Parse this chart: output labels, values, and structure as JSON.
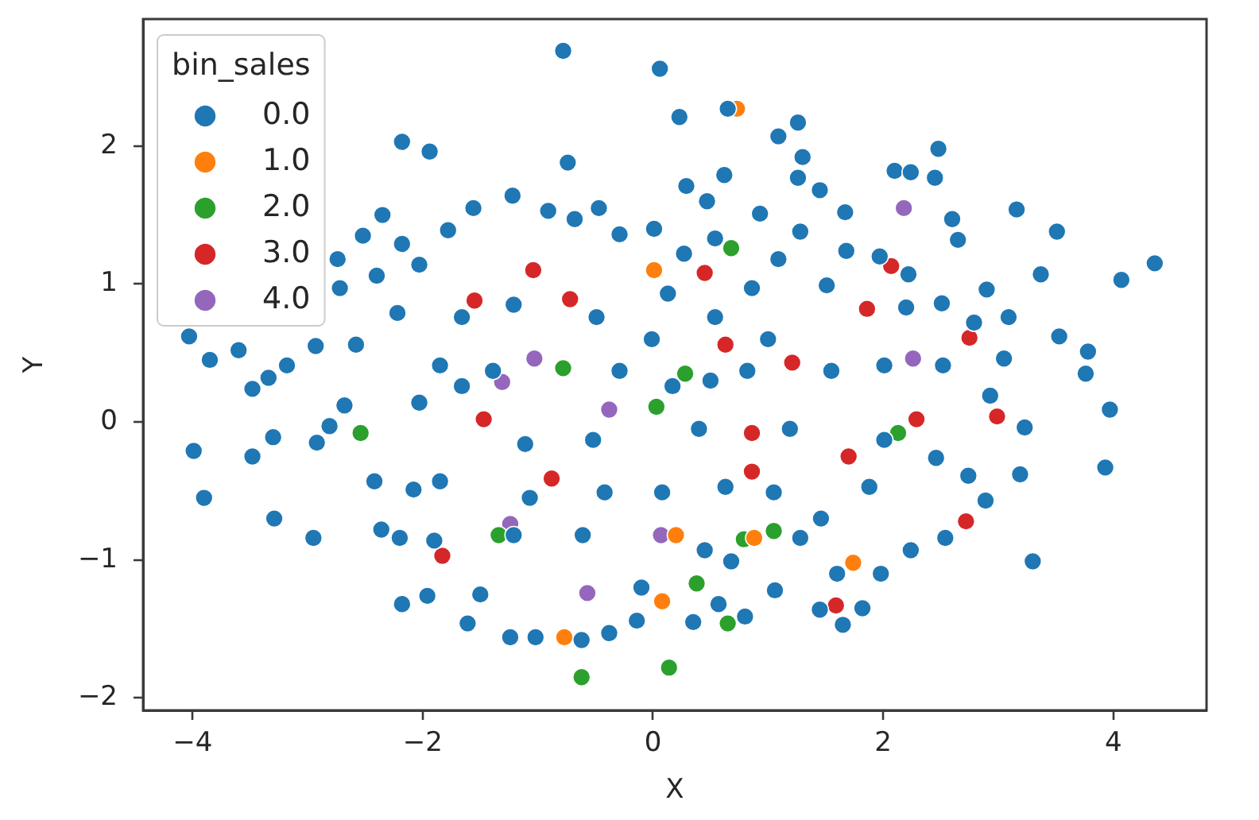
{
  "chart_data": {
    "type": "scatter",
    "xlabel": "X",
    "ylabel": "Y",
    "legend_title": "bin_sales",
    "legend": "top left",
    "marker": "circle",
    "xlim": [
      -4.43,
      4.81
    ],
    "ylim": [
      -2.09,
      2.92
    ],
    "xticks": [
      {
        "value": -4,
        "label": "−4"
      },
      {
        "value": -2,
        "label": "−2"
      },
      0,
      2,
      4
    ],
    "yticks": [
      {
        "value": -2,
        "label": "−2"
      },
      {
        "value": -1,
        "label": "−1"
      },
      0,
      1,
      2
    ],
    "series": [
      {
        "name": "0.0",
        "color": "#1f77b4",
        "x": [
          -0.78,
          0.06,
          0.23,
          -0.74,
          -2.18,
          -1.94,
          0.29,
          -1.22,
          -1.56,
          -0.47,
          -0.91,
          -1.78,
          -0.29,
          0.01,
          -2.35,
          -2.52,
          -2.18,
          -2.74,
          -4.03,
          -3.85,
          -3.6,
          -3.18,
          -3.34,
          -2.93,
          -2.58,
          -2.72,
          -2.4,
          -2.03,
          0.65,
          1.26,
          1.09,
          1.3,
          2.48,
          2.1,
          2.24,
          2.45,
          0.62,
          0.47,
          1.26,
          1.45,
          1.67,
          3.16,
          3.51,
          2.6,
          2.65,
          4.36,
          4.07,
          3.37,
          2.9,
          3.09,
          3.53,
          3.78,
          3.76,
          3.05,
          0.93,
          1.28,
          1.68,
          1.97,
          2.22,
          2.51,
          2.79,
          3.97,
          3.93,
          3.3,
          3.23,
          3.19,
          2.89,
          2.74,
          2.93,
          2.54,
          2.24,
          1.98,
          1.82,
          1.65,
          1.45,
          0.8,
          0.35,
          1.6,
          1.28,
          1.06,
          0.57,
          2.46,
          -3.99,
          -3.9,
          -3.48,
          -3.29,
          -2.95,
          -2.92,
          -3.3,
          -3.48,
          -2.81,
          -2.68,
          -2.42,
          -2.36,
          -2.2,
          -2.18,
          -1.96,
          -1.61,
          -1.24,
          -1.02,
          -0.62,
          -0.38,
          -1.5,
          -0.14,
          -1.9,
          -2.08,
          -1.21,
          -0.49,
          0.13,
          -0.68,
          0.27,
          -1.66,
          -2.22,
          -1.85,
          -1.39,
          -0.29,
          -0.01,
          0.86,
          1.51,
          1.09,
          0.54,
          2.2,
          1.0,
          0.54,
          0.82,
          1.55,
          2.01,
          2.52,
          -1.66,
          0.17,
          -2.03,
          -1.11,
          -0.52,
          0.4,
          -1.85,
          -1.07,
          -0.42,
          0.08,
          -0.61,
          -0.1,
          0.45,
          -1.21,
          0.5,
          1.19,
          2.01,
          1.88,
          0.63,
          1.05,
          0.68,
          1.46
        ],
        "values": [
          2.69,
          2.56,
          2.21,
          1.88,
          2.03,
          1.96,
          1.71,
          1.64,
          1.55,
          1.55,
          1.53,
          1.39,
          1.36,
          1.4,
          1.5,
          1.35,
          1.29,
          1.18,
          0.62,
          0.45,
          0.52,
          0.41,
          0.32,
          0.55,
          0.56,
          0.97,
          1.06,
          1.14,
          2.27,
          2.17,
          2.07,
          1.92,
          1.98,
          1.82,
          1.81,
          1.77,
          1.79,
          1.6,
          1.77,
          1.68,
          1.52,
          1.54,
          1.38,
          1.47,
          1.32,
          1.15,
          1.03,
          1.07,
          0.96,
          0.76,
          0.62,
          0.51,
          0.35,
          0.46,
          1.51,
          1.38,
          1.24,
          1.2,
          1.07,
          0.86,
          0.72,
          0.09,
          -0.33,
          -1.01,
          -0.04,
          -0.38,
          -0.57,
          -0.39,
          0.19,
          -0.84,
          -0.93,
          -1.1,
          -1.35,
          -1.47,
          -1.36,
          -1.41,
          -1.45,
          -1.1,
          -0.84,
          -1.22,
          -1.32,
          -0.26,
          -0.21,
          -0.55,
          -0.25,
          -0.7,
          -0.84,
          -0.15,
          -0.11,
          0.24,
          -0.03,
          0.12,
          -0.43,
          -0.78,
          -0.84,
          -1.32,
          -1.26,
          -1.46,
          -1.56,
          -1.56,
          -1.58,
          -1.53,
          -1.25,
          -1.44,
          -0.86,
          -0.49,
          0.85,
          0.76,
          0.93,
          1.47,
          1.22,
          0.76,
          0.79,
          0.41,
          0.37,
          0.37,
          0.6,
          0.97,
          0.99,
          1.18,
          1.33,
          0.83,
          0.6,
          0.76,
          0.37,
          0.37,
          0.41,
          0.41,
          0.26,
          0.26,
          0.14,
          -0.16,
          -0.13,
          -0.05,
          -0.43,
          -0.55,
          -0.51,
          -0.51,
          -0.82,
          -1.2,
          -0.93,
          -0.82,
          0.3,
          -0.05,
          -0.13,
          -0.47,
          -0.47,
          -0.51,
          -1.01,
          -0.7
        ]
      },
      {
        "name": "1.0",
        "color": "#ff7f0e",
        "x": [
          0.01,
          0.73,
          0.2,
          0.08,
          -0.77,
          1.74,
          0.88
        ],
        "values": [
          1.1,
          2.27,
          -0.82,
          -1.3,
          -1.56,
          -1.02,
          -0.84
        ]
      },
      {
        "name": "2.0",
        "color": "#2ca02c",
        "x": [
          -0.78,
          0.68,
          0.03,
          -2.54,
          -1.34,
          0.38,
          -0.62,
          0.14,
          0.28,
          1.05,
          0.79,
          0.65,
          2.13
        ],
        "values": [
          0.39,
          1.26,
          0.11,
          -0.08,
          -0.82,
          -1.17,
          -1.85,
          -1.78,
          0.35,
          -0.79,
          -0.85,
          -1.46,
          -0.08
        ]
      },
      {
        "name": "3.0",
        "color": "#d62728",
        "x": [
          -1.04,
          -1.55,
          -0.72,
          0.45,
          2.07,
          1.86,
          0.63,
          1.21,
          2.75,
          2.99,
          2.29,
          0.86,
          1.7,
          0.86,
          2.72,
          1.59,
          -1.47,
          -0.88,
          -1.83
        ],
        "values": [
          1.1,
          0.88,
          0.89,
          1.08,
          1.13,
          0.82,
          0.56,
          0.43,
          0.61,
          0.04,
          0.02,
          -0.08,
          -0.25,
          -0.36,
          -0.72,
          -1.33,
          0.02,
          -0.41,
          -0.97
        ]
      },
      {
        "name": "4.0",
        "color": "#9467bd",
        "x": [
          2.18,
          2.26,
          -1.31,
          -1.03,
          -0.38,
          0.07,
          -0.57,
          -1.24
        ],
        "values": [
          1.55,
          0.46,
          0.29,
          0.46,
          0.09,
          -0.82,
          -1.24,
          -0.74
        ]
      }
    ]
  }
}
